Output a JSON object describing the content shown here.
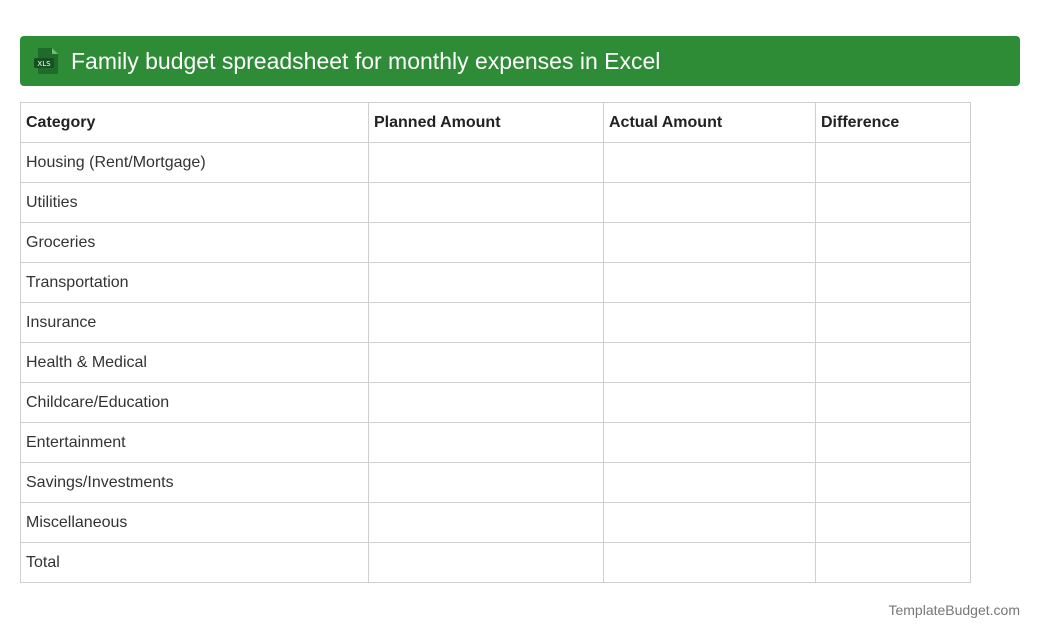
{
  "header": {
    "icon": "xls-file-icon",
    "icon_label": "XLS",
    "title": "Family budget spreadsheet for monthly expenses in Excel",
    "background_color": "#2e8b36"
  },
  "table": {
    "columns": [
      "Category",
      "Planned Amount",
      "Actual Amount",
      "Difference"
    ],
    "rows": [
      [
        "Housing (Rent/Mortgage)",
        "",
        "",
        ""
      ],
      [
        "Utilities",
        "",
        "",
        ""
      ],
      [
        "Groceries",
        "",
        "",
        ""
      ],
      [
        "Transportation",
        "",
        "",
        ""
      ],
      [
        "Insurance",
        "",
        "",
        ""
      ],
      [
        "Health & Medical",
        "",
        "",
        ""
      ],
      [
        "Childcare/Education",
        "",
        "",
        ""
      ],
      [
        "Entertainment",
        "",
        "",
        ""
      ],
      [
        "Savings/Investments",
        "",
        "",
        ""
      ],
      [
        "Miscellaneous",
        "",
        "",
        ""
      ],
      [
        "Total",
        "",
        "",
        ""
      ]
    ]
  },
  "footer": {
    "brand": "TemplateBudget.com"
  }
}
